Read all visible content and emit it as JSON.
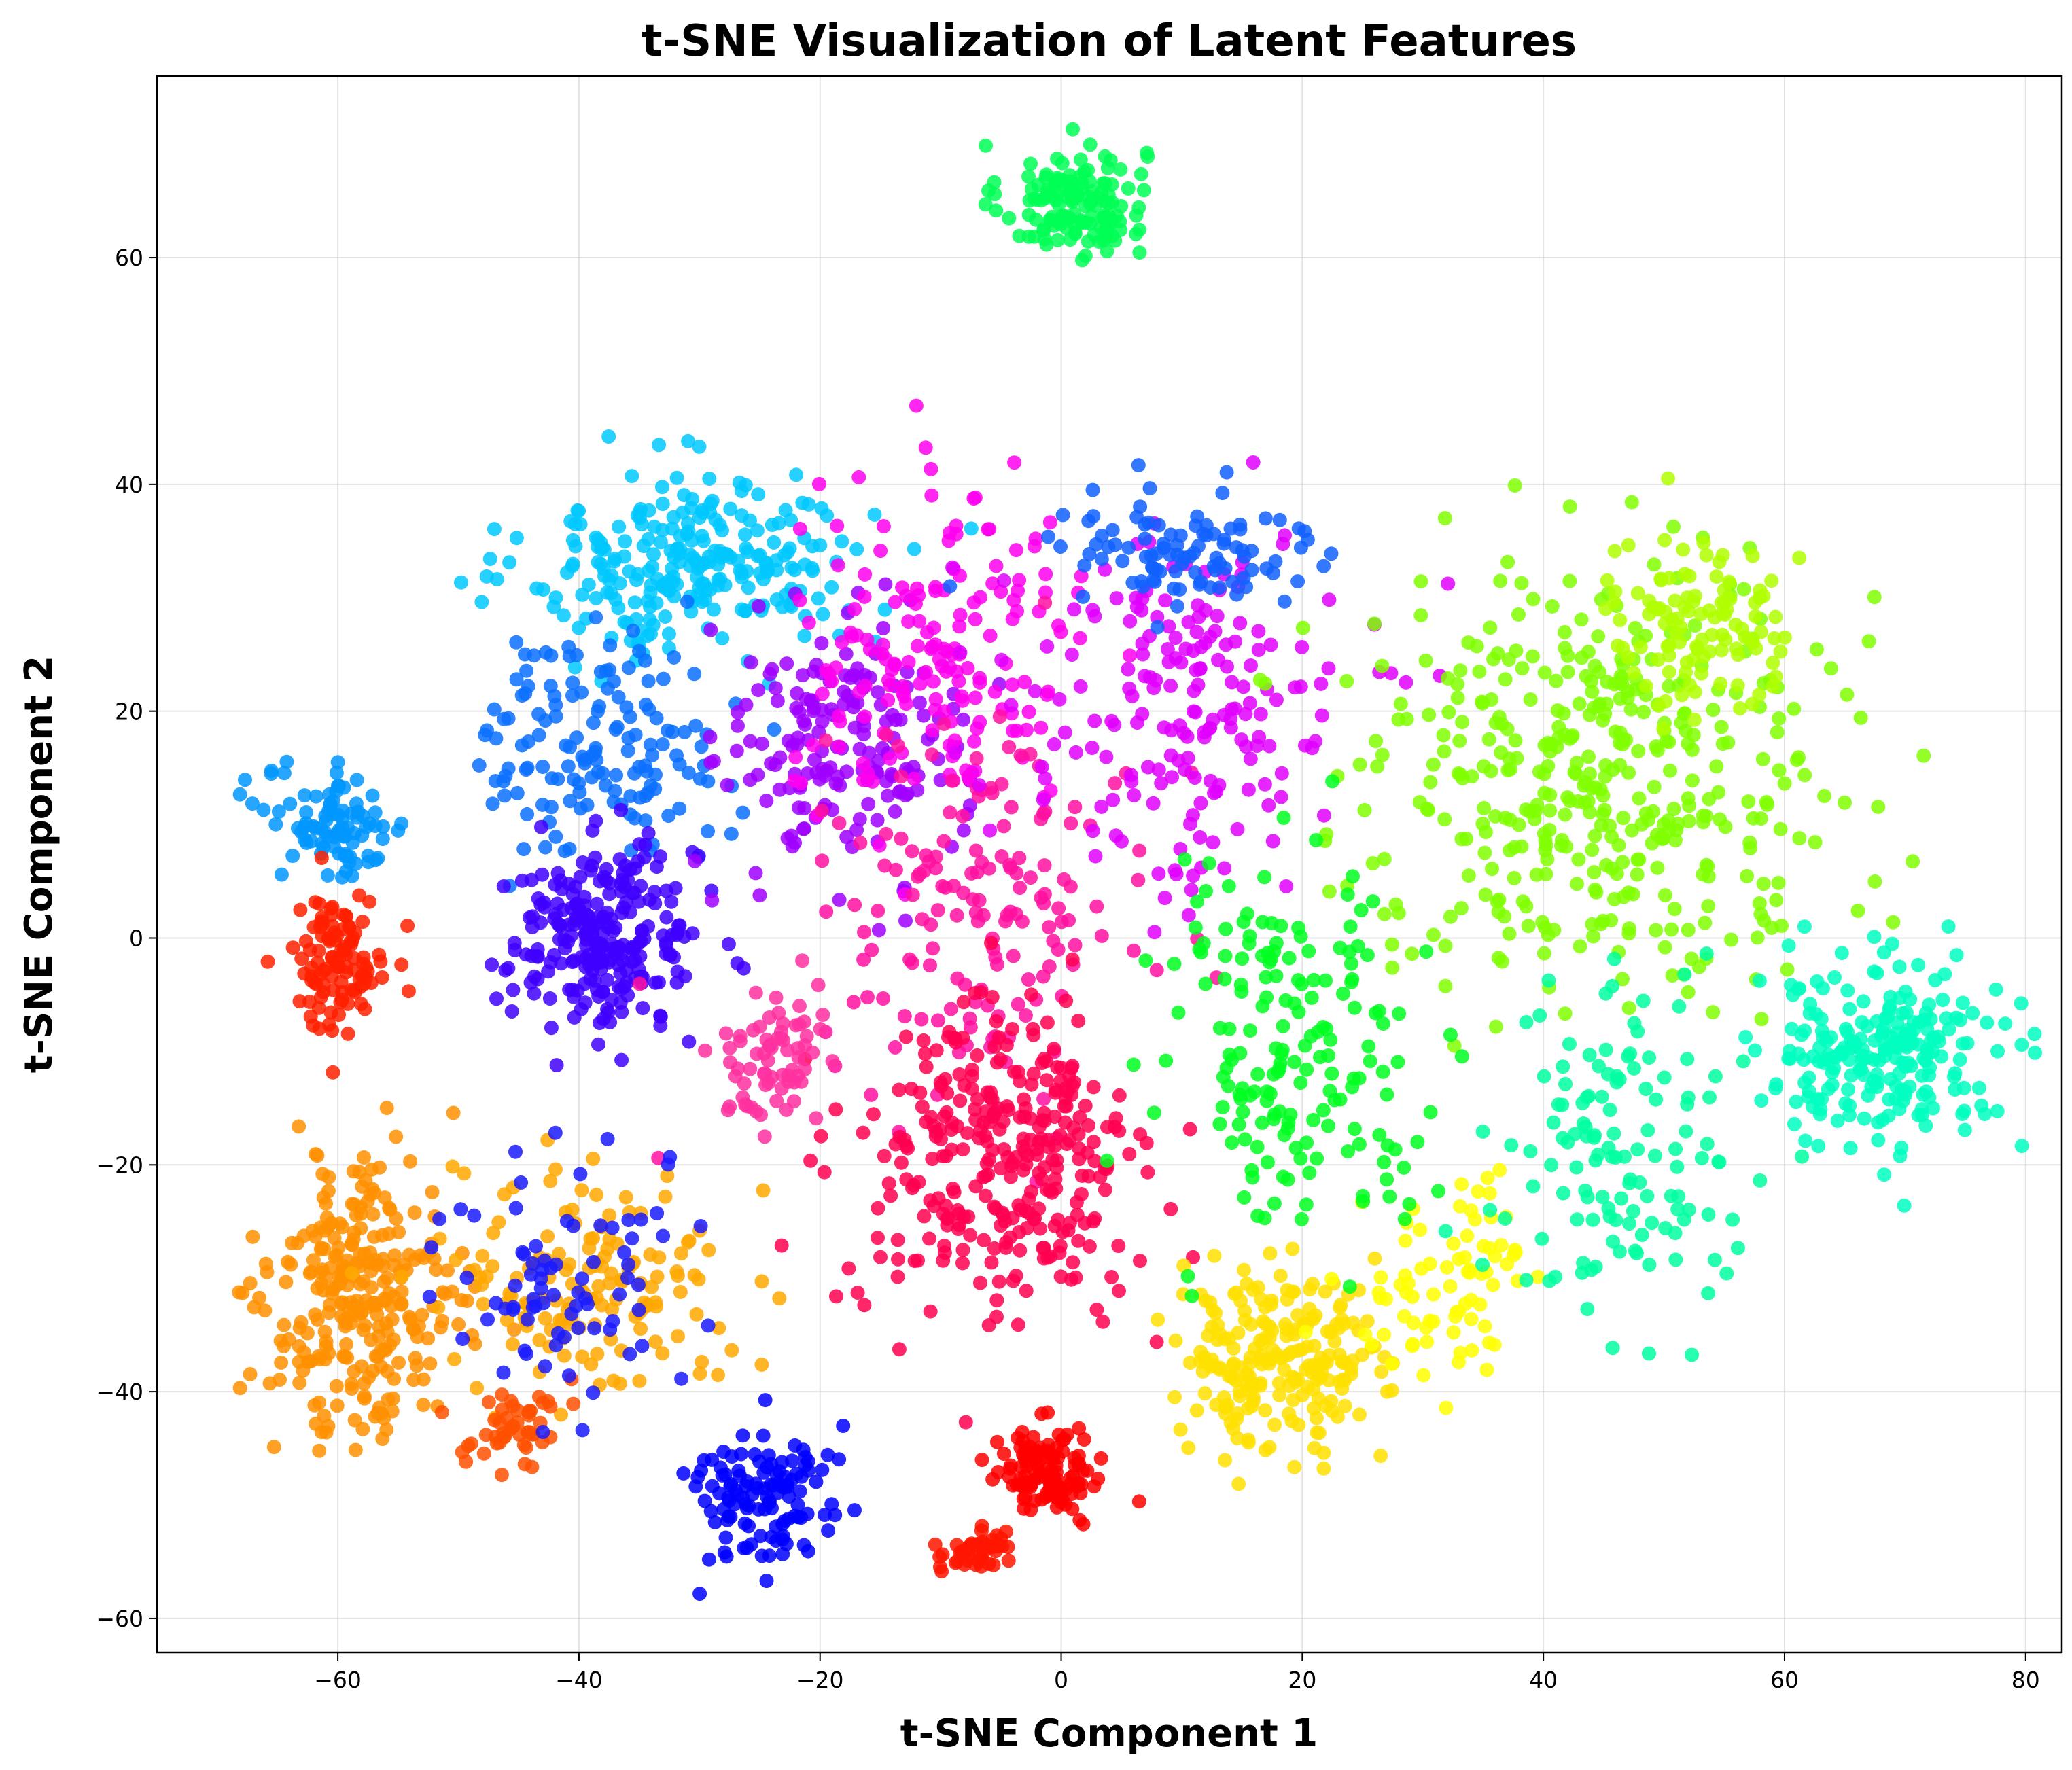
{
  "chart_data": {
    "type": "scatter",
    "title": "t-SNE Visualization of Latent Features",
    "xlabel": "t-SNE Component 1",
    "ylabel": "t-SNE Component 2",
    "xlim": [
      -75,
      83
    ],
    "ylim": [
      -63,
      76
    ],
    "xticks": [
      -60,
      -40,
      -20,
      0,
      20,
      40,
      60,
      80
    ],
    "yticks": [
      -60,
      -40,
      -20,
      0,
      20,
      40,
      60
    ],
    "xtick_labels": [
      "−60",
      "−40",
      "−20",
      "0",
      "20",
      "40",
      "60",
      "80"
    ],
    "ytick_labels": [
      "−60",
      "−40",
      "−20",
      "0",
      "20",
      "40",
      "60"
    ],
    "grid": true,
    "legend": "none",
    "colormap": "hsv",
    "clusters": [
      {
        "color": "#00ff55",
        "cx": 1,
        "cy": 65,
        "sx": 3,
        "sy": 2.5,
        "n": 140
      },
      {
        "color": "#00c8ff",
        "cx": -30,
        "cy": 33,
        "sx": 7,
        "sy": 4,
        "n": 260
      },
      {
        "color": "#0096ff",
        "cx": -60,
        "cy": 10,
        "sx": 3,
        "sy": 2.5,
        "n": 90
      },
      {
        "color": "#ff2000",
        "cx": -60,
        "cy": -2,
        "sx": 2,
        "sy": 3,
        "n": 110
      },
      {
        "color": "#0a70ff",
        "cx": -38,
        "cy": 17,
        "sx": 5,
        "sy": 5,
        "n": 150
      },
      {
        "color": "#4000ff",
        "cx": -38,
        "cy": 0,
        "sx": 4,
        "sy": 4,
        "n": 250
      },
      {
        "color": "#a000ff",
        "cx": -18,
        "cy": 17,
        "sx": 5,
        "sy": 6,
        "n": 180
      },
      {
        "color": "#ff00ee",
        "cx": -10,
        "cy": 25,
        "sx": 6,
        "sy": 7,
        "n": 170
      },
      {
        "color": "#ff10a0",
        "cx": -6,
        "cy": 3,
        "sx": 7,
        "sy": 8,
        "n": 160
      },
      {
        "color": "#e000ff",
        "cx": 10,
        "cy": 20,
        "sx": 7,
        "sy": 8,
        "n": 190
      },
      {
        "color": "#1060ff",
        "cx": 10,
        "cy": 34,
        "sx": 6,
        "sy": 3,
        "n": 100
      },
      {
        "color": "#ff0050",
        "cx": -5,
        "cy": -20,
        "sx": 6,
        "sy": 7,
        "n": 320
      },
      {
        "color": "#ff9000",
        "cx": -58,
        "cy": -32,
        "sx": 4,
        "sy": 6,
        "n": 280
      },
      {
        "color": "#ffa800",
        "cx": -39,
        "cy": -30,
        "sx": 6,
        "sy": 5,
        "n": 150
      },
      {
        "color": "#ff5000",
        "cx": -45,
        "cy": -43,
        "sx": 2,
        "sy": 2,
        "n": 50
      },
      {
        "color": "#1a1aff",
        "cx": -42,
        "cy": -30,
        "sx": 5,
        "sy": 6,
        "n": 80
      },
      {
        "color": "#0000ff",
        "cx": -25,
        "cy": -49,
        "sx": 3,
        "sy": 3,
        "n": 120
      },
      {
        "color": "#ff0000",
        "cx": -1,
        "cy": -47,
        "sx": 2,
        "sy": 2,
        "n": 120
      },
      {
        "color": "#ff1500",
        "cx": -7,
        "cy": -54,
        "sx": 1.5,
        "sy": 1,
        "n": 45
      },
      {
        "color": "#ff30a0",
        "cx": -24,
        "cy": -11,
        "sx": 2,
        "sy": 3,
        "n": 70
      },
      {
        "color": "#ffe000",
        "cx": 18,
        "cy": -37,
        "sx": 4,
        "sy": 4,
        "n": 220
      },
      {
        "color": "#ffff00",
        "cx": 32,
        "cy": -31,
        "sx": 4,
        "sy": 4,
        "n": 80
      },
      {
        "color": "#80ff00",
        "cx": 45,
        "cy": 15,
        "sx": 10,
        "sy": 9,
        "n": 420
      },
      {
        "color": "#00ff20",
        "cx": 20,
        "cy": -10,
        "sx": 6,
        "sy": 8,
        "n": 180
      },
      {
        "color": "#00ffc0",
        "cx": 68,
        "cy": -10,
        "sx": 5,
        "sy": 4,
        "n": 230
      },
      {
        "color": "#00ffa0",
        "cx": 46,
        "cy": -20,
        "sx": 5,
        "sy": 7,
        "n": 130
      },
      {
        "color": "#b0ff00",
        "cx": 53,
        "cy": 28,
        "sx": 4,
        "sy": 4,
        "n": 110
      }
    ]
  }
}
